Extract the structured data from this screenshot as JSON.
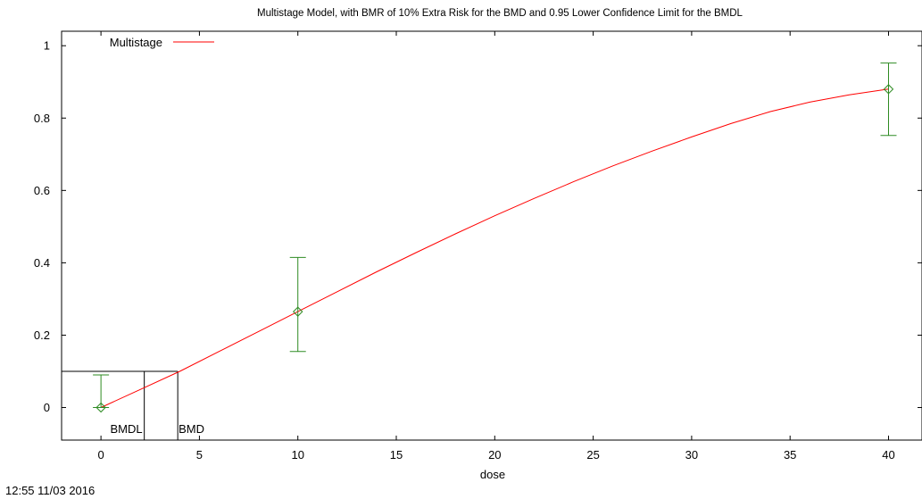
{
  "chart_data": {
    "type": "line",
    "title": "Multistage Model, with BMR of 10% Extra Risk for the BMD and 0.95 Lower Confidence Limit for the BMDL",
    "xlabel": "dose",
    "ylabel": "",
    "xlim": [
      -2,
      41.7
    ],
    "ylim": [
      -0.09,
      1.04
    ],
    "xticks": [
      0,
      5,
      10,
      15,
      20,
      25,
      30,
      35,
      40
    ],
    "xtick_labels": [
      "0",
      "5",
      "10",
      "15",
      "20",
      "25",
      "30",
      "35",
      "40"
    ],
    "yticks": [
      0,
      0.2,
      0.4,
      0.6,
      0.8,
      1
    ],
    "ytick_labels": [
      "0",
      "0.2",
      "0.4",
      "0.6",
      "0.8",
      "1"
    ],
    "legend": {
      "position": "top-left",
      "entries": [
        {
          "label": "Multistage",
          "color": "#ff0000"
        }
      ]
    },
    "model": {
      "name": "Multistage",
      "color": "#ff0000",
      "x": [
        0,
        2,
        4,
        6,
        8,
        10,
        12,
        14,
        16,
        18,
        20,
        22,
        24,
        26,
        28,
        30,
        32,
        34,
        36,
        38,
        40
      ],
      "y": [
        0.0,
        0.05,
        0.1,
        0.155,
        0.21,
        0.265,
        0.32,
        0.375,
        0.428,
        0.48,
        0.53,
        0.578,
        0.624,
        0.668,
        0.709,
        0.748,
        0.785,
        0.818,
        0.844,
        0.864,
        0.88
      ]
    },
    "observed": {
      "color": "#2e8b22",
      "points": [
        {
          "dose": 0,
          "response": 0.0,
          "lower": 0.0,
          "upper": 0.09
        },
        {
          "dose": 10,
          "response": 0.265,
          "lower": 0.155,
          "upper": 0.415
        },
        {
          "dose": 40,
          "response": 0.88,
          "lower": 0.752,
          "upper": 0.952
        }
      ]
    },
    "bmr": 0.1,
    "bmdl": 2.2,
    "bmd": 3.9,
    "bmdl_label": "BMDL",
    "bmd_label": "BMD"
  },
  "timestamp": "12:55 11/03 2016"
}
